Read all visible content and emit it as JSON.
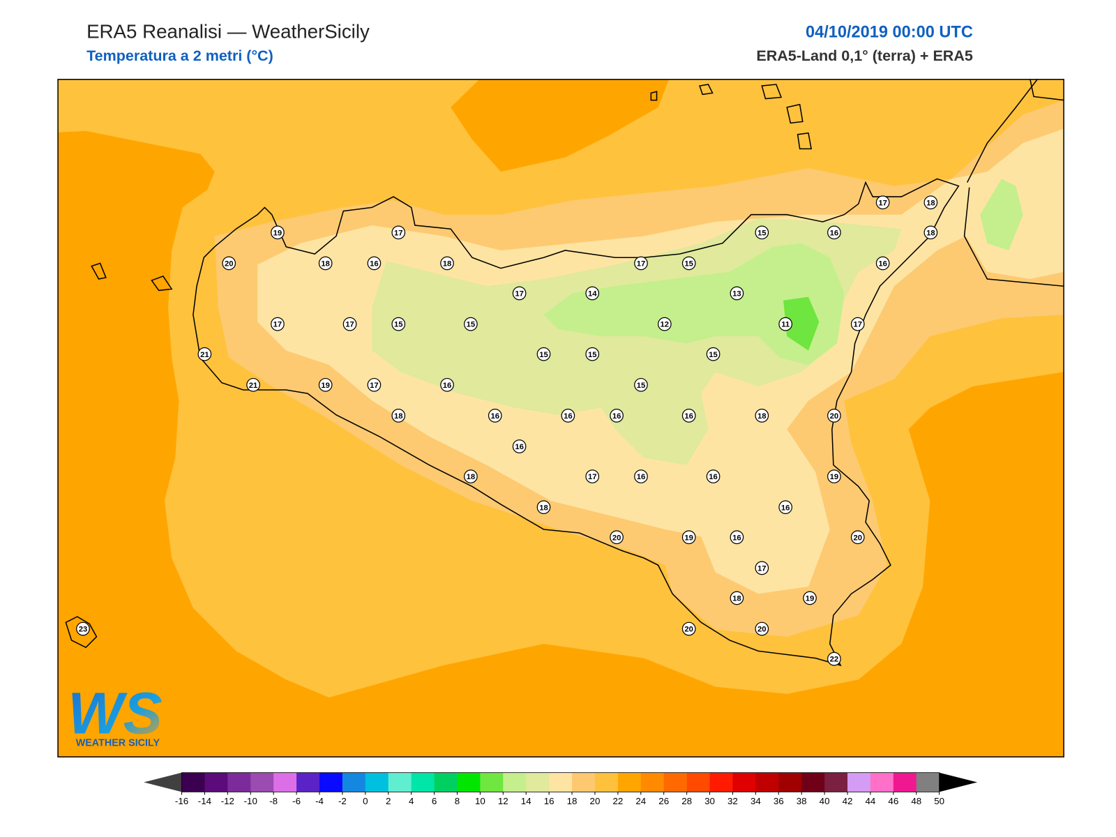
{
  "header": {
    "title": "ERA5 Reanalisi — WeatherSicily",
    "subtitle": "Temperatura a 2 metri (°C)",
    "date": "04/10/2019 00:00 UTC",
    "source": "ERA5-Land 0,1° (terra) + ERA5"
  },
  "stations": {
    "values": [
      19,
      17,
      20,
      18,
      16,
      18,
      17,
      14,
      17,
      15,
      15,
      16,
      17,
      18,
      18,
      16,
      13,
      17,
      17,
      15,
      15,
      12,
      11,
      17,
      21,
      15,
      15,
      15,
      21,
      19,
      17,
      16,
      15,
      18,
      16,
      16,
      16,
      16,
      18,
      20,
      16,
      18,
      17,
      16,
      16,
      19,
      18,
      16,
      20,
      19,
      16,
      20,
      17,
      18,
      19,
      23,
      20,
      20,
      22
    ]
  },
  "colorbar": {
    "ticks": [
      -16,
      -14,
      -12,
      -10,
      -8,
      -6,
      -4,
      -2,
      0,
      2,
      4,
      6,
      8,
      10,
      12,
      14,
      16,
      18,
      20,
      22,
      24,
      26,
      28,
      30,
      32,
      34,
      36,
      38,
      40,
      42,
      44,
      46,
      48,
      50
    ],
    "colors": [
      "#3b0050",
      "#5b0b7a",
      "#7b2b9a",
      "#9c4bb0",
      "#dc6fe8",
      "#5a23c8",
      "#0a0aff",
      "#1488e0",
      "#00c0e0",
      "#5fefd0",
      "#00e6a8",
      "#00d060",
      "#00e600",
      "#70e640",
      "#c4ef8c",
      "#e0e99c",
      "#fee4a2",
      "#fdc870",
      "#fec13c",
      "#ffa500",
      "#ff8a00",
      "#ff6a00",
      "#ff4a00",
      "#ff1a00",
      "#e00000",
      "#c00000",
      "#a00000",
      "#700018",
      "#7a2040",
      "#d49cf4",
      "#ff70c8",
      "#f01890",
      "#808080"
    ],
    "under_color": "#404040",
    "over_color": "#000000",
    "last_color": "#3a3a3a"
  },
  "logo": {
    "mark": "WS",
    "caption": "WEATHER SICILY"
  }
}
